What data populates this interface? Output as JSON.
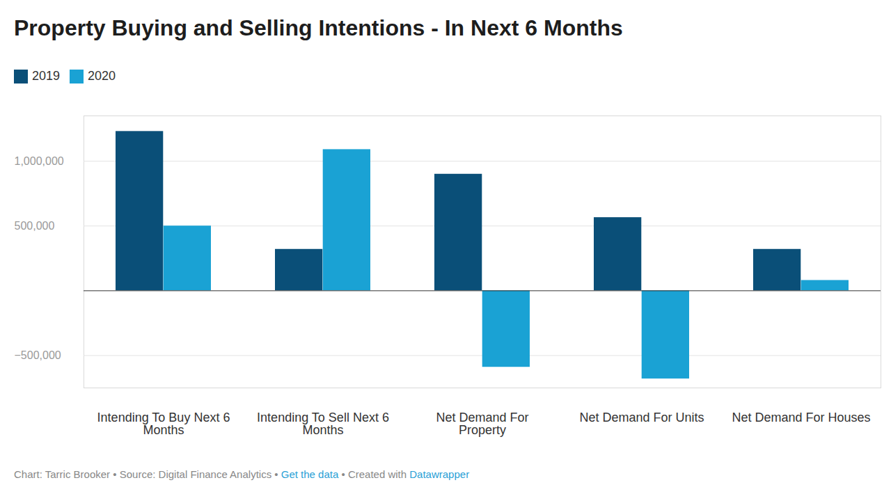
{
  "chart_data": {
    "type": "bar",
    "title": "Property Buying and Selling Intentions - In Next 6 Months",
    "categories": [
      "Intending To Buy Next 6 Months",
      "Intending To Sell Next 6 Months",
      "Net Demand For Property",
      "Net Demand For Units",
      "Net Demand For Houses"
    ],
    "series": [
      {
        "name": "2019",
        "color": "#0a4f78",
        "values": [
          1230000,
          320000,
          900000,
          565000,
          320000
        ]
      },
      {
        "name": "2020",
        "color": "#1aa2d4",
        "values": [
          500000,
          1090000,
          -590000,
          -680000,
          80000
        ]
      }
    ],
    "ylim": [
      -750000,
      1350000
    ],
    "yticks": [
      {
        "value": -500000,
        "label": "−500,000"
      },
      {
        "value": 500000,
        "label": "500,000"
      },
      {
        "value": 1000000,
        "label": "1,000,000"
      }
    ],
    "grid": true,
    "legend": "top-left",
    "footer": [
      "Chart: Tarric Brooker",
      "Source: Digital Finance Analytics",
      "Get the data",
      "Created with Datawrapper"
    ],
    "footer_links": [
      "Get the data",
      "Datawrapper"
    ],
    "footer_separator": "•"
  }
}
